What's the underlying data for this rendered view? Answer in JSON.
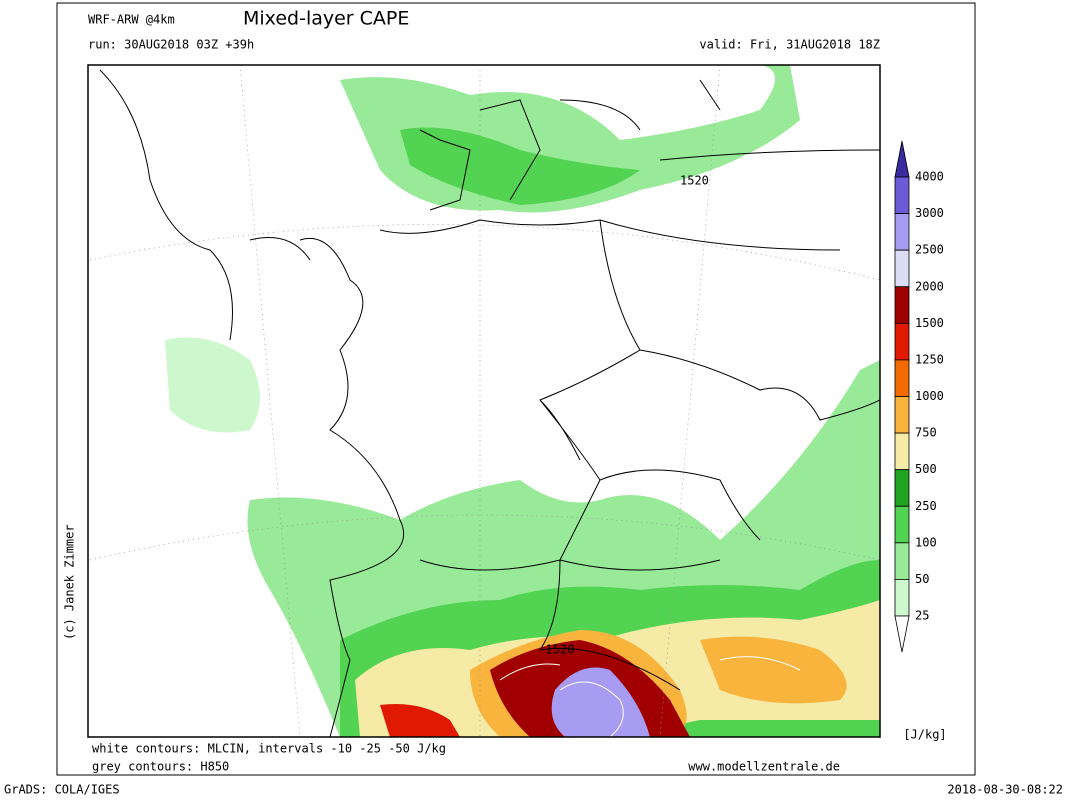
{
  "header": {
    "model": "WRF-ARW @4km",
    "title": "Mixed-layer CAPE",
    "run": "run: 30AUG2018 03Z +39h",
    "valid": "valid: Fri, 31AUG2018 18Z"
  },
  "map": {
    "contour_labels": [
      "1520",
      "1520"
    ],
    "copyright": "(c) Janek Zimmer"
  },
  "colorbar": {
    "levels": [
      4000,
      3000,
      2500,
      2000,
      1500,
      1250,
      1000,
      750,
      500,
      250,
      100,
      50,
      25
    ],
    "colors": [
      "#3a2aa0",
      "#6c5ad8",
      "#a79cf2",
      "#dcdcf6",
      "#a00000",
      "#e01a00",
      "#f26a00",
      "#f8b43c",
      "#f5eaa6",
      "#22a322",
      "#52d352",
      "#98ea98",
      "#cdf8cd",
      "#ffffff"
    ],
    "unit": "[J/kg]"
  },
  "footer": {
    "note1": "white contours: MLCIN, intervals -10 -25 -50 J/kg",
    "note2": "grey contours: H850",
    "site": "www.modellzentrale.de",
    "software": "GrADS: COLA/IGES",
    "timestamp": "2018-08-30-08:22"
  }
}
